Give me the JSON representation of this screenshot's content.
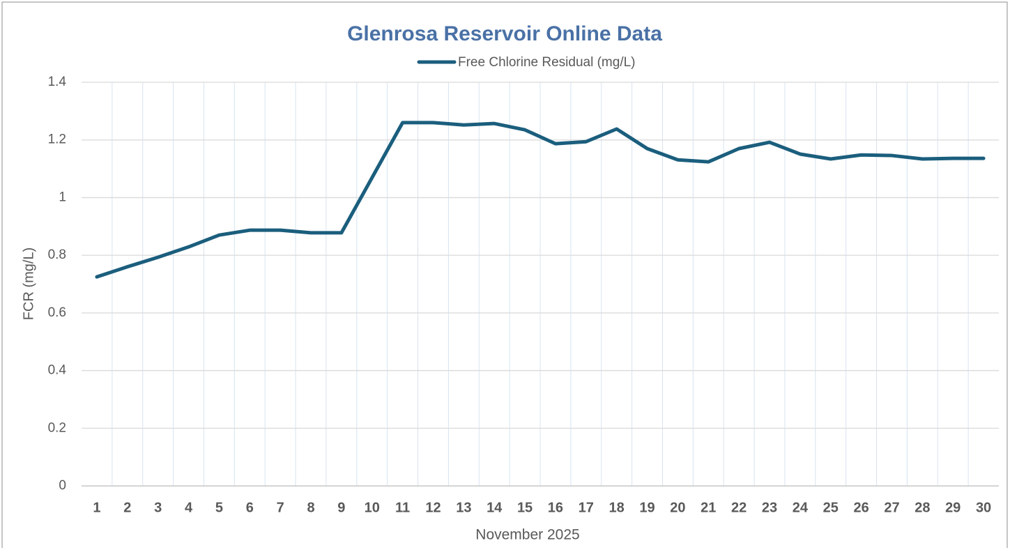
{
  "chart_data": {
    "type": "line",
    "title": "Glenrosa Reservoir Online Data",
    "xlabel": "November 2025",
    "ylabel": "FCR (mg/L)",
    "categories": [
      "1",
      "2",
      "3",
      "4",
      "5",
      "6",
      "7",
      "8",
      "9",
      "10",
      "11",
      "12",
      "13",
      "14",
      "15",
      "16",
      "17",
      "18",
      "19",
      "20",
      "21",
      "22",
      "23",
      "24",
      "25",
      "26",
      "27",
      "28",
      "29",
      "30"
    ],
    "series": [
      {
        "name": "Free Chlorine Residual (mg/L)",
        "color": "#1b5e7d",
        "values": [
          0.725,
          0.76,
          0.793,
          0.829,
          0.87,
          0.887,
          0.887,
          0.878,
          0.878,
          1.069,
          1.26,
          1.26,
          1.252,
          1.257,
          1.235,
          1.187,
          1.194,
          1.238,
          1.17,
          1.131,
          1.124,
          1.17,
          1.192,
          1.151,
          1.134,
          1.148,
          1.146,
          1.134,
          1.136,
          1.136
        ]
      }
    ],
    "ylim": [
      0,
      1.4
    ],
    "yticks": [
      0,
      0.2,
      0.4,
      0.6,
      0.8,
      1,
      1.2,
      1.4
    ],
    "grid": true,
    "legend": "top"
  }
}
